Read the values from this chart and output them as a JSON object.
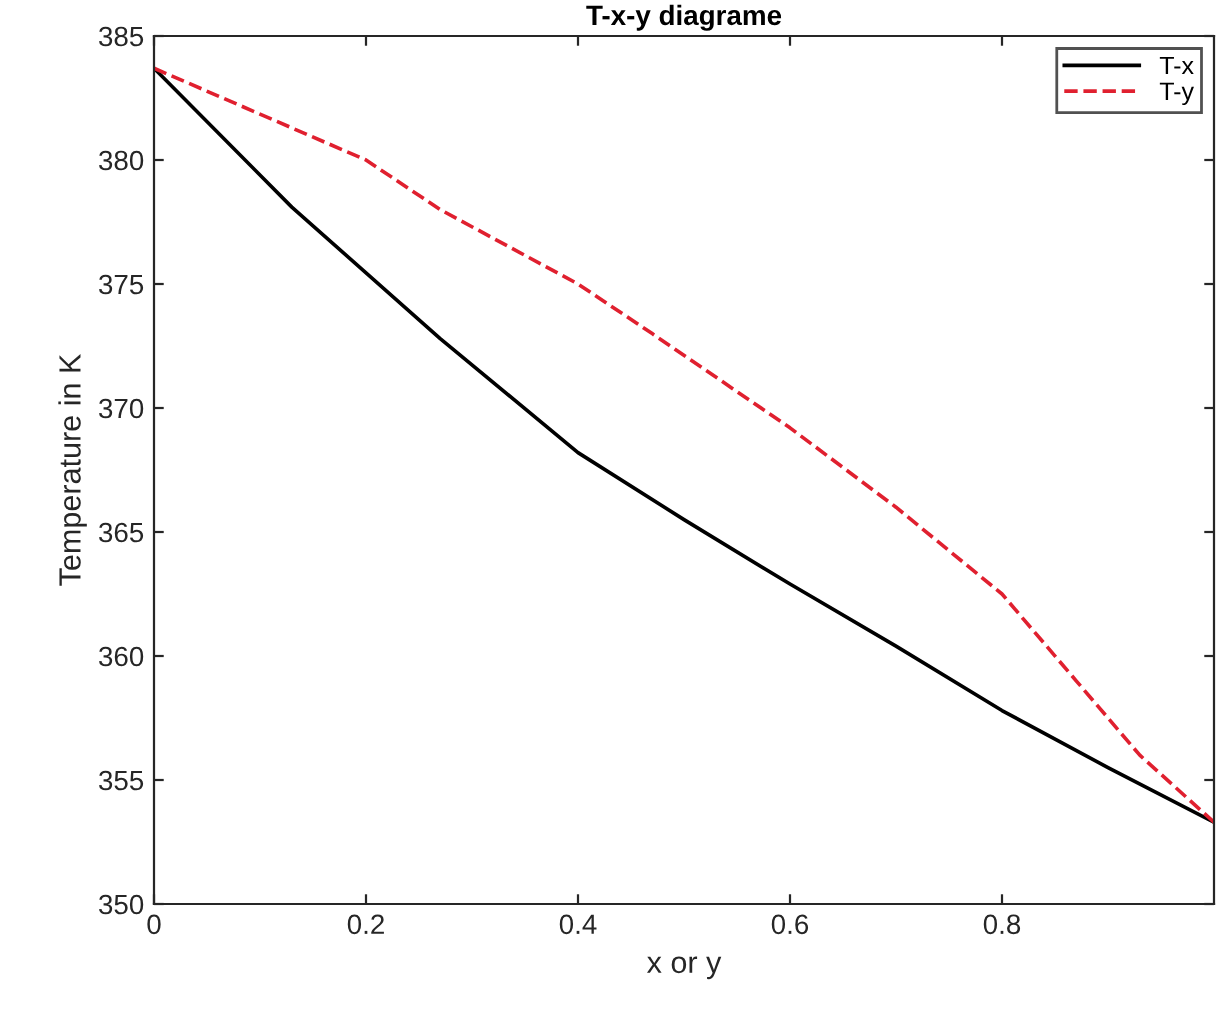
{
  "chart_data": {
    "type": "line",
    "title": "T-x-y diagrame",
    "xlabel": "x or y",
    "ylabel": "Temperature in K",
    "xlim": [
      0,
      1
    ],
    "xticks": [
      0,
      0.2,
      0.4,
      0.6,
      0.8
    ],
    "ylim": [
      350,
      385
    ],
    "yticks": [
      350,
      355,
      360,
      365,
      370,
      375,
      380,
      385
    ],
    "grid": false,
    "legend": "top right",
    "series": [
      {
        "name": "T-x",
        "color": "#000000",
        "line_style": "solid",
        "x": [
          0,
          0.13,
          0.27,
          0.4,
          0.5,
          0.6,
          0.7,
          0.8,
          0.9,
          1.0
        ],
        "values": [
          383.7,
          378.1,
          372.8,
          368.2,
          365.5,
          362.9,
          360.4,
          357.8,
          355.5,
          353.3
        ]
      },
      {
        "name": "T-y",
        "color": "#e0202f",
        "line_style": "dashed",
        "x": [
          0,
          0.2,
          0.27,
          0.4,
          0.47,
          0.6,
          0.7,
          0.8,
          0.87,
          0.93,
          1.0
        ],
        "values": [
          383.7,
          380.0,
          378.0,
          375.0,
          373.0,
          369.2,
          366.0,
          362.5,
          359.0,
          356.0,
          353.3
        ]
      }
    ]
  }
}
